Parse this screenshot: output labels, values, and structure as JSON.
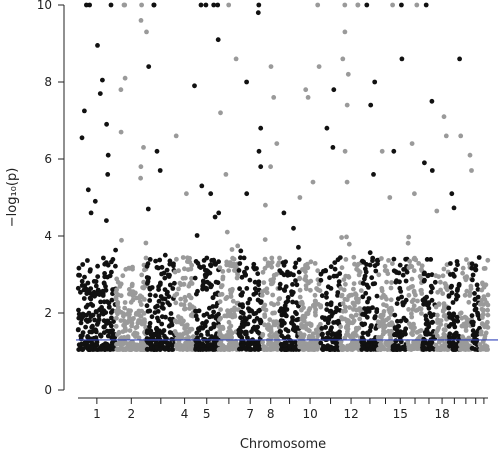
{
  "chart_data": {
    "type": "scatter",
    "subtype": "manhattan",
    "title": "",
    "xlabel": "Chromosome",
    "ylabel": "−log₁₀(p)",
    "ylim": [
      0,
      10
    ],
    "yticks": [
      0,
      2,
      4,
      6,
      8,
      10
    ],
    "clipped_at_top": true,
    "grid": false,
    "legend": "none",
    "threshold": {
      "value": 1.3,
      "color": "#3344bb"
    },
    "colors": {
      "odd": "#111111",
      "even": "#9a9a9a"
    },
    "chromosomes": [
      "1",
      "2",
      "3",
      "4",
      "5",
      "6",
      "7",
      "8",
      "9",
      "10",
      "11",
      "12",
      "13",
      "14",
      "15",
      "16",
      "17",
      "18",
      "19",
      "20",
      "21",
      "22"
    ],
    "x_tick_labels": [
      "1",
      "2",
      "4",
      "5",
      "7",
      "8",
      "10",
      "12",
      "15",
      "18"
    ],
    "x_tick_chromosomes": [
      1,
      2,
      4,
      5,
      7,
      8,
      10,
      12,
      15,
      18
    ],
    "points_per_chromosome": [
      230,
      190,
      170,
      120,
      150,
      120,
      140,
      110,
      120,
      130,
      120,
      130,
      100,
      90,
      90,
      90,
      80,
      80,
      70,
      70,
      50,
      50
    ],
    "highlights": [
      {
        "chr": 1,
        "y": 10
      },
      {
        "chr": 1,
        "y": 10
      },
      {
        "chr": 1,
        "y": 10
      },
      {
        "chr": 1,
        "y": 8.95
      },
      {
        "chr": 1,
        "y": 8.05
      },
      {
        "chr": 1,
        "y": 7.7
      },
      {
        "chr": 1,
        "y": 7.25
      },
      {
        "chr": 1,
        "y": 6.9
      },
      {
        "chr": 1,
        "y": 6.55
      },
      {
        "chr": 1,
        "y": 6.1
      },
      {
        "chr": 1,
        "y": 5.6
      },
      {
        "chr": 1,
        "y": 5.2
      },
      {
        "chr": 1,
        "y": 4.9
      },
      {
        "chr": 1,
        "y": 4.6
      },
      {
        "chr": 1,
        "y": 4.4
      },
      {
        "chr": 2,
        "y": 10
      },
      {
        "chr": 2,
        "y": 10
      },
      {
        "chr": 2,
        "y": 10
      },
      {
        "chr": 2,
        "y": 9.6
      },
      {
        "chr": 2,
        "y": 9.3
      },
      {
        "chr": 2,
        "y": 8.1
      },
      {
        "chr": 2,
        "y": 7.8
      },
      {
        "chr": 2,
        "y": 6.7
      },
      {
        "chr": 2,
        "y": 6.3
      },
      {
        "chr": 2,
        "y": 5.8
      },
      {
        "chr": 2,
        "y": 5.5
      },
      {
        "chr": 3,
        "y": 10
      },
      {
        "chr": 3,
        "y": 10
      },
      {
        "chr": 3,
        "y": 8.4
      },
      {
        "chr": 3,
        "y": 6.2
      },
      {
        "chr": 3,
        "y": 5.7
      },
      {
        "chr": 3,
        "y": 4.7
      },
      {
        "chr": 4,
        "y": 6.6
      },
      {
        "chr": 4,
        "y": 5.1
      },
      {
        "chr": 5,
        "y": 10
      },
      {
        "chr": 5,
        "y": 10
      },
      {
        "chr": 5,
        "y": 10
      },
      {
        "chr": 5,
        "y": 10
      },
      {
        "chr": 5,
        "y": 9.1
      },
      {
        "chr": 5,
        "y": 7.9
      },
      {
        "chr": 5,
        "y": 5.3
      },
      {
        "chr": 5,
        "y": 5.1
      },
      {
        "chr": 5,
        "y": 4.6
      },
      {
        "chr": 6,
        "y": 10
      },
      {
        "chr": 6,
        "y": 8.6
      },
      {
        "chr": 6,
        "y": 7.2
      },
      {
        "chr": 6,
        "y": 5.6
      },
      {
        "chr": 7,
        "y": 10
      },
      {
        "chr": 7,
        "y": 9.8
      },
      {
        "chr": 7,
        "y": 8.0
      },
      {
        "chr": 7,
        "y": 6.8
      },
      {
        "chr": 7,
        "y": 6.2
      },
      {
        "chr": 7,
        "y": 5.8
      },
      {
        "chr": 7,
        "y": 5.1
      },
      {
        "chr": 8,
        "y": 8.4
      },
      {
        "chr": 8,
        "y": 7.6
      },
      {
        "chr": 8,
        "y": 6.4
      },
      {
        "chr": 8,
        "y": 5.8
      },
      {
        "chr": 8,
        "y": 4.8
      },
      {
        "chr": 9,
        "y": 4.6
      },
      {
        "chr": 9,
        "y": 4.2
      },
      {
        "chr": 10,
        "y": 10
      },
      {
        "chr": 10,
        "y": 8.4
      },
      {
        "chr": 10,
        "y": 7.8
      },
      {
        "chr": 10,
        "y": 7.6
      },
      {
        "chr": 10,
        "y": 5.4
      },
      {
        "chr": 10,
        "y": 5.0
      },
      {
        "chr": 11,
        "y": 7.8
      },
      {
        "chr": 11,
        "y": 6.8
      },
      {
        "chr": 11,
        "y": 6.3
      },
      {
        "chr": 12,
        "y": 10
      },
      {
        "chr": 12,
        "y": 10
      },
      {
        "chr": 12,
        "y": 10
      },
      {
        "chr": 12,
        "y": 9.3
      },
      {
        "chr": 12,
        "y": 8.6
      },
      {
        "chr": 12,
        "y": 8.2
      },
      {
        "chr": 12,
        "y": 7.4
      },
      {
        "chr": 12,
        "y": 6.2
      },
      {
        "chr": 12,
        "y": 5.4
      },
      {
        "chr": 13,
        "y": 10
      },
      {
        "chr": 13,
        "y": 8.0
      },
      {
        "chr": 13,
        "y": 7.4
      },
      {
        "chr": 13,
        "y": 5.6
      },
      {
        "chr": 14,
        "y": 10
      },
      {
        "chr": 14,
        "y": 6.2
      },
      {
        "chr": 14,
        "y": 5.0
      },
      {
        "chr": 15,
        "y": 10
      },
      {
        "chr": 15,
        "y": 8.6
      },
      {
        "chr": 15,
        "y": 6.2
      },
      {
        "chr": 16,
        "y": 10
      },
      {
        "chr": 16,
        "y": 6.4
      },
      {
        "chr": 16,
        "y": 5.1
      },
      {
        "chr": 17,
        "y": 10
      },
      {
        "chr": 17,
        "y": 7.5
      },
      {
        "chr": 17,
        "y": 5.9
      },
      {
        "chr": 17,
        "y": 5.7
      },
      {
        "chr": 18,
        "y": 7.1
      },
      {
        "chr": 18,
        "y": 6.6
      },
      {
        "chr": 19,
        "y": 8.6
      },
      {
        "chr": 19,
        "y": 5.1
      },
      {
        "chr": 20,
        "y": 6.6
      },
      {
        "chr": 20,
        "y": 6.1
      },
      {
        "chr": 20,
        "y": 5.7
      }
    ]
  }
}
